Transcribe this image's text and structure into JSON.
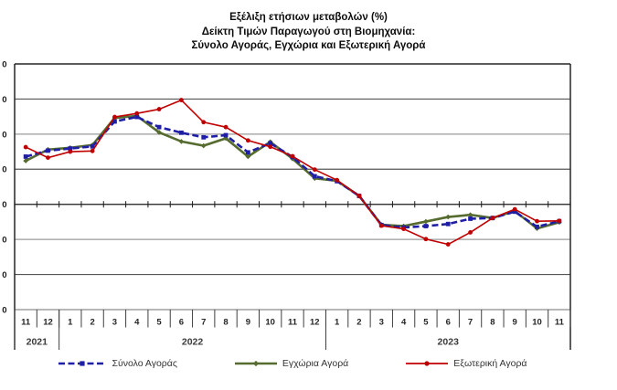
{
  "chart_data": {
    "type": "line",
    "title_lines": [
      "Εξέλιξη ετήσιων μεταβολών (%)",
      "Δείκτη Τιμών Παραγωγού στη Βιομηχανία:",
      "Σύνολο Αγοράς, Εγχώρια και Εξωτερική Αγορά"
    ],
    "categories": [
      "11",
      "12",
      "1",
      "2",
      "3",
      "4",
      "5",
      "6",
      "7",
      "8",
      "9",
      "10",
      "11",
      "12",
      "1",
      "2",
      "3",
      "4",
      "5",
      "6",
      "7",
      "8",
      "9",
      "10",
      "11"
    ],
    "year_groups": [
      {
        "label": "2021",
        "count": 2
      },
      {
        "label": "2022",
        "count": 12
      },
      {
        "label": "2023",
        "count": 11
      }
    ],
    "y_axis": {
      "min": -30,
      "max": 40,
      "step": 10,
      "tick_labels_visible": [
        "0",
        "0",
        "0",
        "0",
        "0",
        "0",
        "0",
        "0"
      ],
      "grid": true
    },
    "series": [
      {
        "name": "Σύνολο Αγοράς",
        "color": "#1F1FA6",
        "style": "dashed",
        "marker": "square",
        "values": [
          13.6,
          15.3,
          15.9,
          16.5,
          23.6,
          24.9,
          22.0,
          20.4,
          19.1,
          19.7,
          14.8,
          17.4,
          13.5,
          8.0,
          6.6,
          2.4,
          -5.9,
          -6.6,
          -6.2,
          -5.6,
          -4.1,
          -3.9,
          -2.1,
          -6.4,
          -4.8
        ]
      },
      {
        "name": "Εγχώρια Αγορά",
        "color": "#566B2F",
        "style": "solid",
        "marker": "diamond",
        "values": [
          12.4,
          15.6,
          16.1,
          16.9,
          24.6,
          25.2,
          20.5,
          17.9,
          16.7,
          18.8,
          13.6,
          17.8,
          13.0,
          7.4,
          6.7,
          2.4,
          -5.8,
          -6.2,
          -4.9,
          -3.6,
          -3.0,
          -3.9,
          -1.9,
          -6.9,
          -5.1
        ]
      },
      {
        "name": "Εξωτερική Αγορά",
        "color": "#C00000",
        "style": "solid",
        "marker": "circle",
        "values": [
          16.3,
          13.3,
          15.0,
          15.2,
          24.9,
          25.9,
          27.1,
          29.7,
          23.4,
          22.0,
          18.2,
          16.4,
          13.7,
          9.9,
          6.9,
          2.4,
          -6.1,
          -7.0,
          -9.9,
          -11.4,
          -8.0,
          -3.9,
          -1.4,
          -4.8,
          -4.7
        ]
      }
    ],
    "legend_position": "bottom"
  }
}
